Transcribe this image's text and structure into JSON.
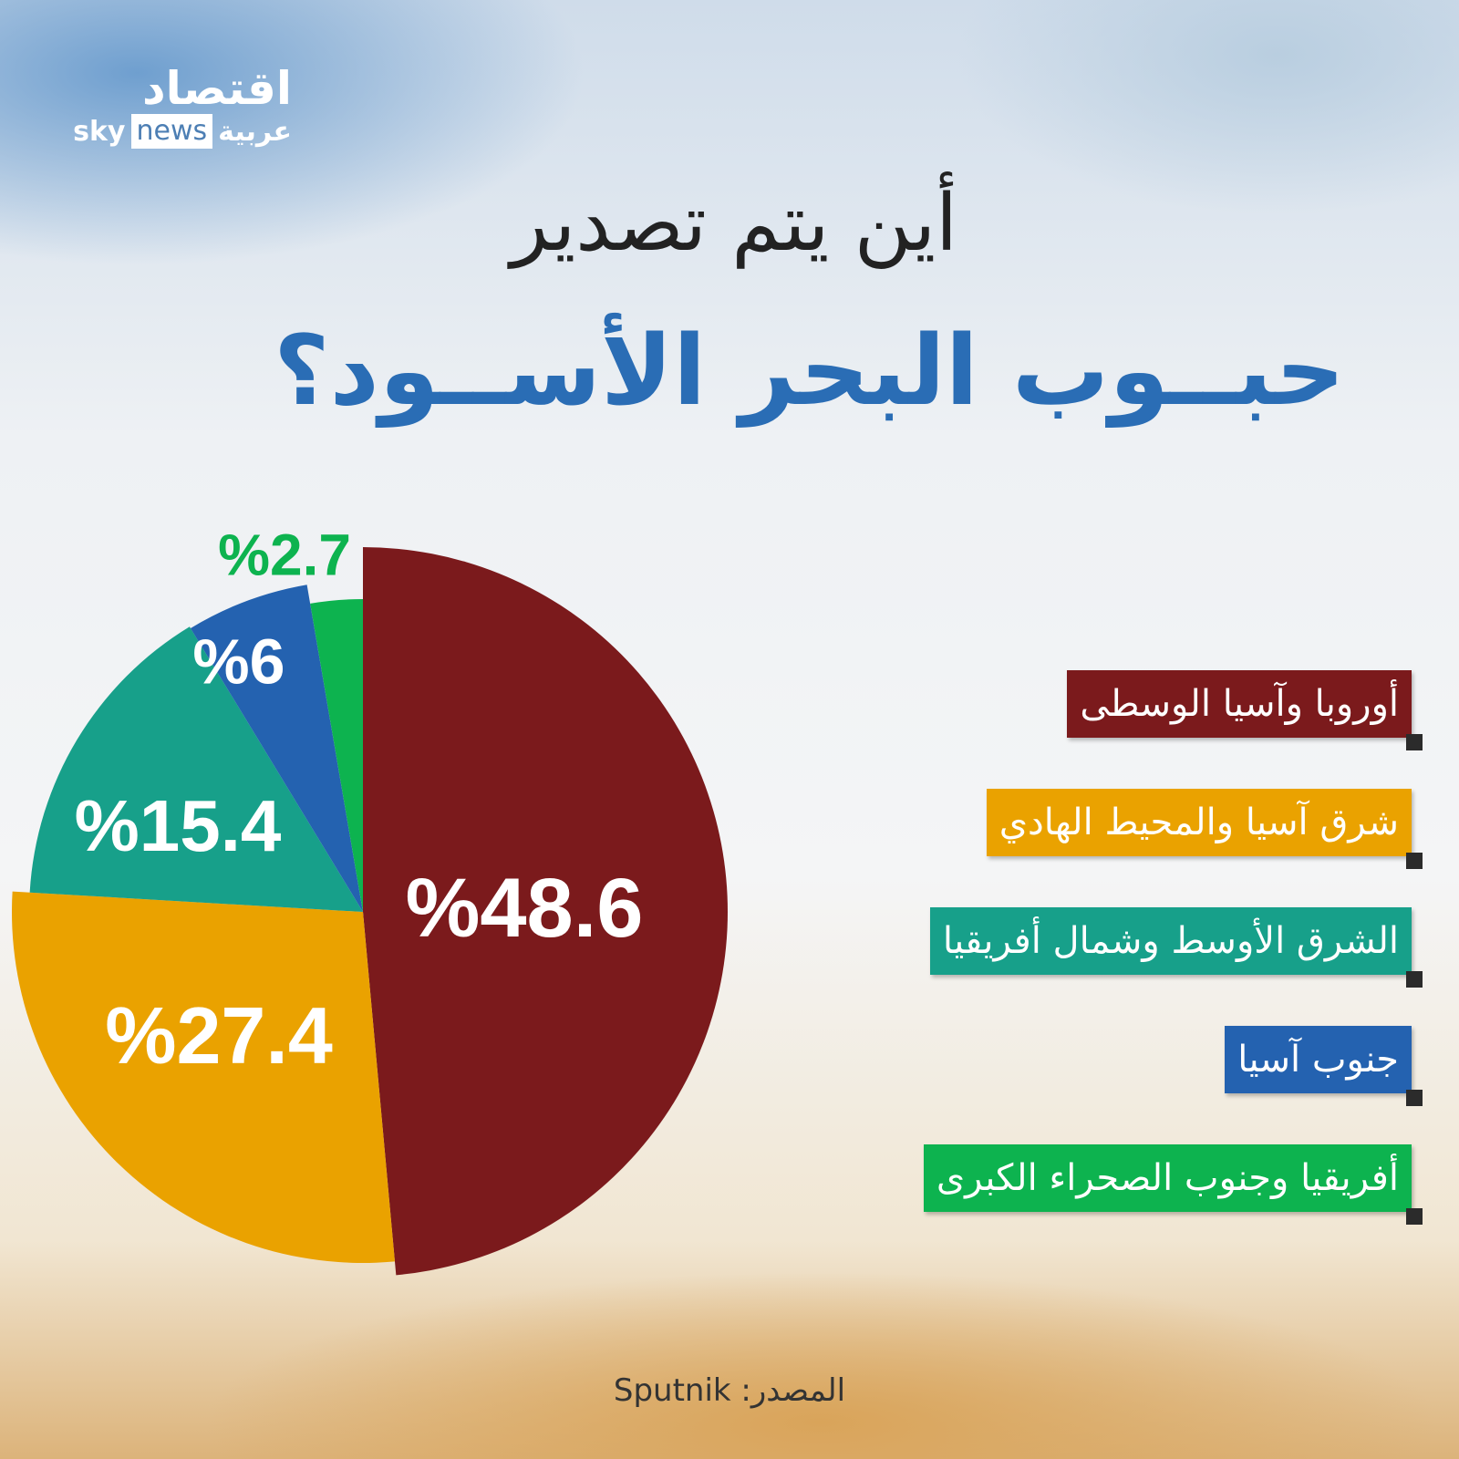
{
  "logo": {
    "arabic_top": "اقتصاد",
    "sky": "sky",
    "news": "news",
    "arabic_bottom": "عربية"
  },
  "title_line1": "أين يتم تصدير",
  "title_line2": "حبــوب البحر الأســود؟",
  "source": "المصدر: Sputnik",
  "chart_data": {
    "type": "pie",
    "categories": [
      "أوروبا وآسيا الوسطى",
      "شرق آسيا والمحيط الهادي",
      "الشرق الأوسط وشمال أفريقيا",
      "جنوب آسيا",
      "أفريقيا وجنوب الصحراء الكبرى"
    ],
    "values": [
      48.6,
      27.4,
      15.4,
      6,
      2.7
    ],
    "labels": [
      "%48.6",
      "%27.4",
      "%15.4",
      "%6",
      "%2.7"
    ],
    "colors": [
      "#7b1a1c",
      "#eaa200",
      "#17a08a",
      "#2462b0",
      "#0db34f"
    ],
    "legend": "right"
  }
}
